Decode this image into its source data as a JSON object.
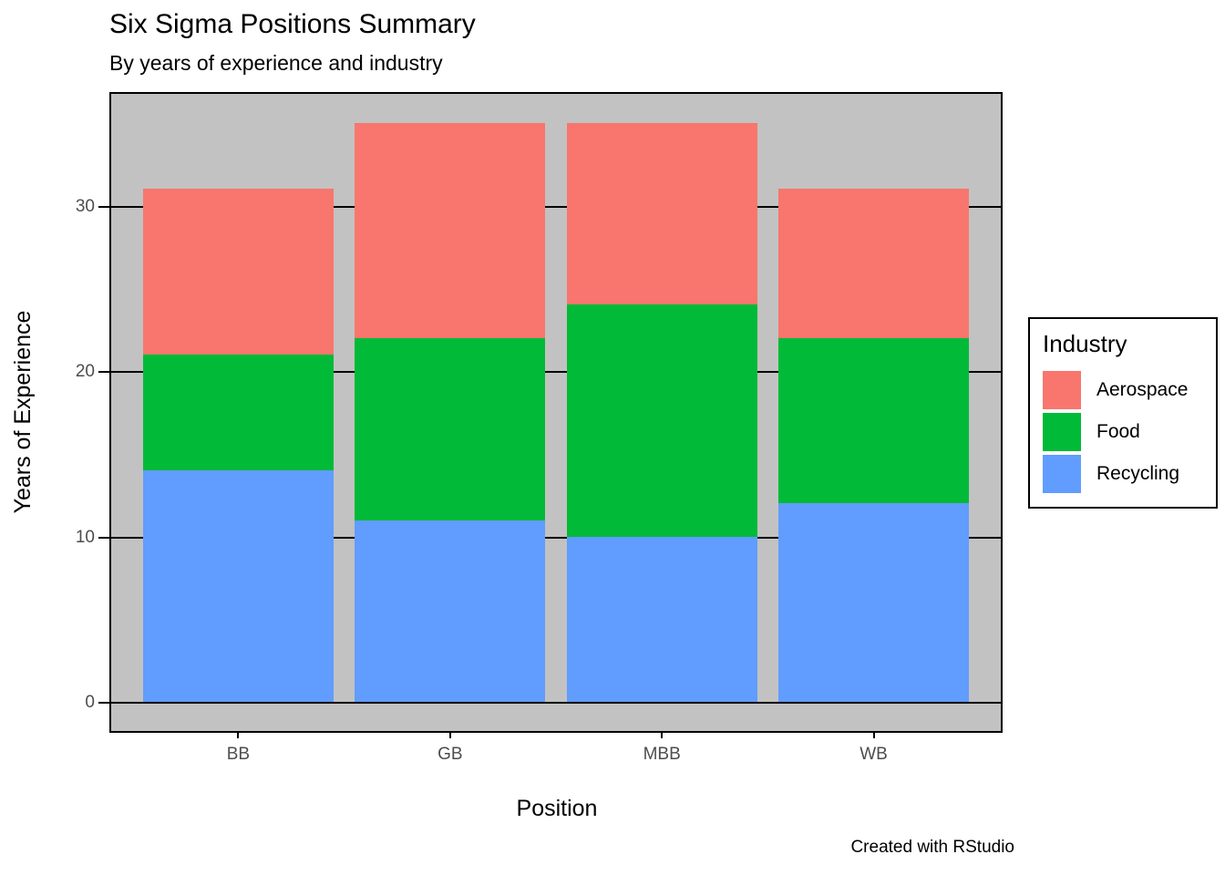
{
  "header": {
    "title": "Six Sigma Positions Summary",
    "subtitle": "By years of experience and industry"
  },
  "caption": "Created with RStudio",
  "axes": {
    "x_title": "Position",
    "y_title": "Years of Experience",
    "x_labels": [
      "BB",
      "GB",
      "MBB",
      "WB"
    ],
    "y_labels": [
      "0",
      "10",
      "20",
      "30"
    ]
  },
  "legend": {
    "title": "Industry",
    "items": [
      {
        "label": "Aerospace",
        "color": "#F8766D"
      },
      {
        "label": "Food",
        "color": "#00BA38"
      },
      {
        "label": "Recycling",
        "color": "#619CFF"
      }
    ]
  },
  "colors": {
    "panel_bg": "#C2C2C2",
    "grid": "#000000",
    "tick_label": "#4D4D4D",
    "aerospace": "#F8766D",
    "food": "#00BA38",
    "recycling": "#619CFF"
  },
  "chart_data": {
    "type": "bar",
    "stacked": true,
    "title": "Six Sigma Positions Summary",
    "subtitle": "By years of experience and industry",
    "xlabel": "Position",
    "ylabel": "Years of Experience",
    "categories": [
      "BB",
      "GB",
      "MBB",
      "WB"
    ],
    "series": [
      {
        "name": "Recycling",
        "color": "#619CFF",
        "values": [
          14,
          11,
          10,
          12
        ]
      },
      {
        "name": "Food",
        "color": "#00BA38",
        "values": [
          7,
          11,
          14,
          10
        ]
      },
      {
        "name": "Aerospace",
        "color": "#F8766D",
        "values": [
          10,
          13,
          11,
          9
        ]
      }
    ],
    "stack_totals": [
      31,
      35,
      35,
      31
    ],
    "ylim": [
      0,
      35
    ],
    "y_ticks": [
      0,
      10,
      20,
      30
    ],
    "y_expansion_mult": 0.05,
    "x_expansion_add": 0.6,
    "bar_rel_width": 0.9,
    "grid": "horizontal-major-black",
    "legend_position": "right",
    "legend_title": "Industry"
  }
}
